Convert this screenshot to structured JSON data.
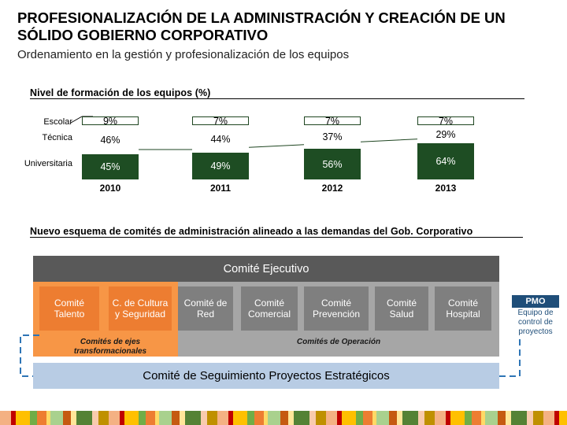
{
  "header": {
    "title": "PROFESIONALIZACIÓN DE LA ADMINISTRACIÓN Y CREACIÓN DE UN SÓLIDO GOBIERNO CORPORATIVO",
    "subtitle": "Ordenamiento en la gestión y profesionalización de los equipos"
  },
  "training": {
    "section_title": "Nivel de formación de los equipos (%)",
    "row_labels": {
      "escolar": "Escolar",
      "tecnica": "Técnica",
      "universitaria": "Universitaria"
    },
    "colors": {
      "escolar": "#ffffff",
      "tecnica": "#ffffff",
      "universitaria": "#1e4d23"
    },
    "years": [
      "2010",
      "2011",
      "2012",
      "2013"
    ],
    "escolar_labels": [
      "9%",
      "7%",
      "7%",
      "7%"
    ],
    "tecnica_labels": [
      "46%",
      "44%",
      "37%",
      "29%"
    ],
    "universitaria_labels": [
      "45%",
      "49%",
      "56%",
      "64%"
    ]
  },
  "chart_data": {
    "type": "bar",
    "stacked": true,
    "categories": [
      "2010",
      "2011",
      "2012",
      "2013"
    ],
    "series": [
      {
        "name": "Escolar",
        "values": [
          9,
          7,
          7,
          7
        ]
      },
      {
        "name": "Técnica",
        "values": [
          46,
          44,
          37,
          29
        ]
      },
      {
        "name": "Universitaria",
        "values": [
          45,
          49,
          56,
          64
        ]
      }
    ],
    "title": "Nivel de formación de los equipos (%)"
  },
  "org": {
    "section_title": "Nuevo esquema de comités de administración alineado a las demandas del Gob. Corporativo",
    "executive": "Comité Ejecutivo",
    "committees": [
      "Comité Talento",
      "C. de Cultura y Seguridad",
      "Comité de Red",
      "Comité Comercial",
      "Comité Prevención",
      "Comité Salud",
      "Comité Hospital"
    ],
    "group_transform": "Comités de ejes transformacionales",
    "group_operation": "Comités de Operación",
    "followup": "Comité de Seguimiento Proyectos Estratégicos",
    "pmo": {
      "label": "PMO",
      "description": "Equipo de control de proyectos"
    },
    "colors": {
      "executive": "#595959",
      "operation_bg": "#a6a6a6",
      "transform_bg": "#f79646",
      "transform_box": "#ed7d31",
      "operation_box": "#7f7f7f",
      "followup": "#b8cce4",
      "pmo": "#1f4e79"
    }
  },
  "footer": {
    "stripe_colors": [
      "#f4b183",
      "#c00000",
      "#ffc000",
      "#70ad47",
      "#ed7d31",
      "#ffd966",
      "#a9d18e",
      "#c55a11",
      "#ffe699",
      "#548235",
      "#f8cbad",
      "#bf9000"
    ]
  }
}
